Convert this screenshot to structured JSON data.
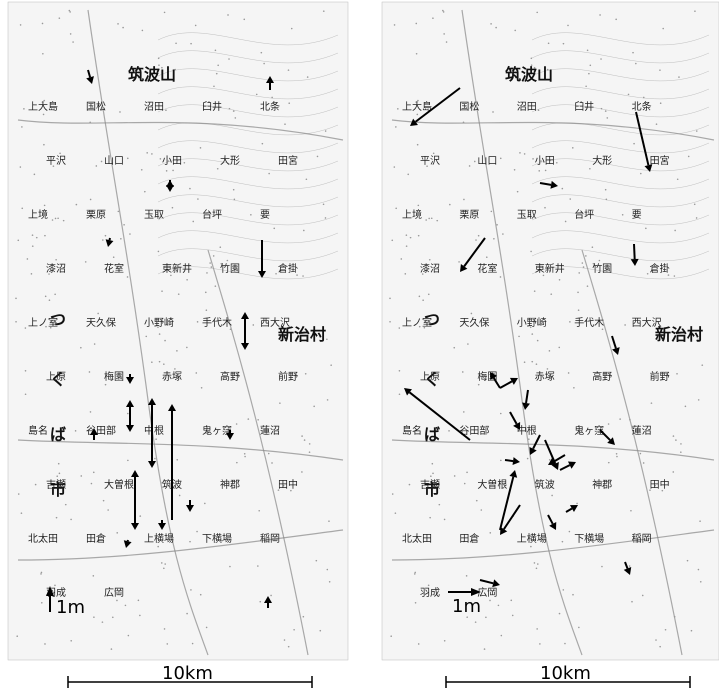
{
  "panels": [
    {
      "id": "left",
      "mountain": "筑波山",
      "city_chars": [
        "つ",
        "く",
        "ば",
        "市"
      ],
      "village": "新治村",
      "places": [
        "上大島",
        "国松",
        "沼田",
        "臼井",
        "北条",
        "平沢",
        "山口",
        "小田",
        "大形",
        "田宮",
        "上境",
        "栗原",
        "玉取",
        "台坪",
        "要",
        "漆沼",
        "花室",
        "東新井",
        "竹園",
        "倉掛",
        "上ノ室",
        "天久保",
        "小野崎",
        "手代木",
        "西大沢",
        "上原",
        "梅園",
        "赤塚",
        "高野",
        "前野",
        "島名",
        "谷田部",
        "中根",
        "鬼ヶ窪",
        "蓮沼",
        "吉瀬",
        "大曽根",
        "筑波",
        "神郡",
        "田中",
        "北太田",
        "田倉",
        "上横場",
        "下横場",
        "稲岡",
        "羽成",
        "広岡"
      ],
      "reference_label": "1m",
      "scale_label": "10km"
    },
    {
      "id": "right",
      "mountain": "筑波山",
      "city_chars": [
        "つ",
        "く",
        "ば",
        "市"
      ],
      "village": "新治村",
      "places": [
        "上大島",
        "国松",
        "沼田",
        "臼井",
        "北条",
        "平沢",
        "山口",
        "小田",
        "大形",
        "田宮",
        "上境",
        "栗原",
        "玉取",
        "台坪",
        "要",
        "漆沼",
        "花室",
        "東新井",
        "竹園",
        "倉掛",
        "上ノ室",
        "天久保",
        "小野崎",
        "手代木",
        "西大沢",
        "上原",
        "梅園",
        "赤塚",
        "高野",
        "前野",
        "島名",
        "谷田部",
        "中根",
        "鬼ヶ窪",
        "蓮沼",
        "吉瀬",
        "大曽根",
        "筑波",
        "神郡",
        "田中",
        "北太田",
        "田倉",
        "上横場",
        "下横場",
        "稲岡",
        "羽成",
        "広岡"
      ],
      "reference_label": "1m",
      "scale_label": "10km"
    }
  ],
  "colors": {
    "arrow": "#000000",
    "map_ink": "#9a9a9a",
    "text": "#222222"
  }
}
